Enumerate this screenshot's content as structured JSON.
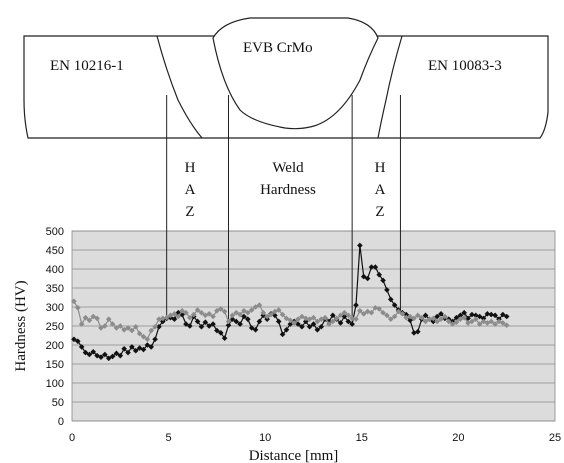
{
  "diagram": {
    "base_metal_left": "EN 10216-1",
    "weld_metal": "EVB CrMo",
    "base_metal_right": "EN 10083-3",
    "zone_left_haz": [
      "H",
      "A",
      "Z"
    ],
    "zone_weld": [
      "Weld",
      "Hardness"
    ],
    "zone_right_haz": [
      "H",
      "A",
      "Z"
    ]
  },
  "chart_data": {
    "type": "line",
    "xlabel": "Distance [mm]",
    "ylabel": "Hardness (HV)",
    "xlim": [
      0,
      25
    ],
    "ylim": [
      0,
      500
    ],
    "x_ticks": [
      "0",
      "5",
      "10",
      "15",
      "20",
      "25"
    ],
    "y_ticks": [
      "0",
      "50",
      "100",
      "150",
      "200",
      "250",
      "300",
      "350",
      "400",
      "450",
      "500"
    ],
    "grid": "horizontal",
    "plot_background": "#dcdcdc",
    "zone_boundaries_mm": [
      4.9,
      8.1,
      14.5,
      17.0
    ],
    "series": [
      {
        "color": "#111111",
        "marker": "diamond",
        "points": [
          [
            0.1,
            215
          ],
          [
            0.3,
            210
          ],
          [
            0.5,
            195
          ],
          [
            0.7,
            180
          ],
          [
            0.9,
            175
          ],
          [
            1.1,
            182
          ],
          [
            1.3,
            172
          ],
          [
            1.5,
            168
          ],
          [
            1.7,
            175
          ],
          [
            1.9,
            165
          ],
          [
            2.1,
            170
          ],
          [
            2.3,
            178
          ],
          [
            2.5,
            172
          ],
          [
            2.7,
            190
          ],
          [
            2.9,
            180
          ],
          [
            3.1,
            195
          ],
          [
            3.3,
            185
          ],
          [
            3.5,
            192
          ],
          [
            3.7,
            188
          ],
          [
            3.9,
            200
          ],
          [
            4.1,
            195
          ],
          [
            4.3,
            215
          ],
          [
            4.5,
            248
          ],
          [
            4.7,
            262
          ],
          [
            4.9,
            270
          ],
          [
            5.1,
            272
          ],
          [
            5.3,
            268
          ],
          [
            5.5,
            285
          ],
          [
            5.7,
            280
          ],
          [
            5.9,
            255
          ],
          [
            6.1,
            250
          ],
          [
            6.3,
            275
          ],
          [
            6.5,
            262
          ],
          [
            6.7,
            248
          ],
          [
            6.9,
            260
          ],
          [
            7.1,
            250
          ],
          [
            7.3,
            255
          ],
          [
            7.5,
            238
          ],
          [
            7.7,
            232
          ],
          [
            7.9,
            218
          ],
          [
            8.1,
            252
          ],
          [
            8.3,
            268
          ],
          [
            8.5,
            262
          ],
          [
            8.7,
            255
          ],
          [
            8.9,
            275
          ],
          [
            9.1,
            268
          ],
          [
            9.3,
            245
          ],
          [
            9.5,
            240
          ],
          [
            9.7,
            262
          ],
          [
            9.9,
            278
          ],
          [
            10.1,
            268
          ],
          [
            10.3,
            282
          ],
          [
            10.5,
            278
          ],
          [
            10.7,
            262
          ],
          [
            10.9,
            228
          ],
          [
            11.1,
            240
          ],
          [
            11.3,
            255
          ],
          [
            11.5,
            262
          ],
          [
            11.7,
            255
          ],
          [
            11.9,
            248
          ],
          [
            12.1,
            262
          ],
          [
            12.3,
            248
          ],
          [
            12.5,
            255
          ],
          [
            12.7,
            240
          ],
          [
            12.9,
            248
          ],
          [
            13.1,
            268
          ],
          [
            13.3,
            262
          ],
          [
            13.5,
            278
          ],
          [
            13.7,
            268
          ],
          [
            13.9,
            258
          ],
          [
            14.1,
            275
          ],
          [
            14.3,
            262
          ],
          [
            14.5,
            255
          ],
          [
            14.7,
            305
          ],
          [
            14.9,
            462
          ],
          [
            15.1,
            380
          ],
          [
            15.3,
            375
          ],
          [
            15.5,
            405
          ],
          [
            15.7,
            405
          ],
          [
            15.9,
            385
          ],
          [
            16.1,
            370
          ],
          [
            16.3,
            345
          ],
          [
            16.5,
            320
          ],
          [
            16.7,
            305
          ],
          [
            16.9,
            292
          ],
          [
            17.1,
            285
          ],
          [
            17.3,
            280
          ],
          [
            17.5,
            265
          ],
          [
            17.7,
            232
          ],
          [
            17.9,
            235
          ],
          [
            18.1,
            268
          ],
          [
            18.3,
            278
          ],
          [
            18.5,
            268
          ],
          [
            18.7,
            262
          ],
          [
            18.9,
            275
          ],
          [
            19.1,
            282
          ],
          [
            19.3,
            270
          ],
          [
            19.5,
            268
          ],
          [
            19.7,
            262
          ],
          [
            19.9,
            272
          ],
          [
            20.1,
            278
          ],
          [
            20.3,
            285
          ],
          [
            20.5,
            270
          ],
          [
            20.7,
            280
          ],
          [
            20.9,
            278
          ],
          [
            21.1,
            275
          ],
          [
            21.3,
            270
          ],
          [
            21.5,
            282
          ],
          [
            21.7,
            280
          ],
          [
            21.9,
            278
          ],
          [
            22.1,
            268
          ],
          [
            22.3,
            280
          ],
          [
            22.5,
            275
          ]
        ]
      },
      {
        "color": "#8c8c8c",
        "marker": "diamond",
        "points": [
          [
            0.1,
            315
          ],
          [
            0.3,
            298
          ],
          [
            0.5,
            255
          ],
          [
            0.7,
            272
          ],
          [
            0.9,
            265
          ],
          [
            1.1,
            275
          ],
          [
            1.3,
            270
          ],
          [
            1.5,
            245
          ],
          [
            1.7,
            250
          ],
          [
            1.9,
            268
          ],
          [
            2.1,
            255
          ],
          [
            2.3,
            245
          ],
          [
            2.5,
            250
          ],
          [
            2.7,
            240
          ],
          [
            2.9,
            245
          ],
          [
            3.1,
            238
          ],
          [
            3.3,
            248
          ],
          [
            3.5,
            230
          ],
          [
            3.7,
            222
          ],
          [
            3.9,
            215
          ],
          [
            4.1,
            238
          ],
          [
            4.3,
            248
          ],
          [
            4.5,
            268
          ],
          [
            4.7,
            270
          ],
          [
            4.9,
            272
          ],
          [
            5.1,
            278
          ],
          [
            5.3,
            282
          ],
          [
            5.5,
            275
          ],
          [
            5.7,
            290
          ],
          [
            5.9,
            285
          ],
          [
            6.1,
            272
          ],
          [
            6.3,
            280
          ],
          [
            6.5,
            292
          ],
          [
            6.7,
            285
          ],
          [
            6.9,
            278
          ],
          [
            7.1,
            282
          ],
          [
            7.3,
            275
          ],
          [
            7.5,
            290
          ],
          [
            7.7,
            295
          ],
          [
            7.9,
            288
          ],
          [
            8.1,
            262
          ],
          [
            8.3,
            278
          ],
          [
            8.5,
            285
          ],
          [
            8.7,
            280
          ],
          [
            8.9,
            290
          ],
          [
            9.1,
            285
          ],
          [
            9.3,
            292
          ],
          [
            9.5,
            300
          ],
          [
            9.7,
            305
          ],
          [
            9.9,
            285
          ],
          [
            10.1,
            275
          ],
          [
            10.3,
            280
          ],
          [
            10.5,
            288
          ],
          [
            10.7,
            292
          ],
          [
            10.9,
            280
          ],
          [
            11.1,
            270
          ],
          [
            11.3,
            265
          ],
          [
            11.5,
            258
          ],
          [
            11.7,
            268
          ],
          [
            11.9,
            275
          ],
          [
            12.1,
            270
          ],
          [
            12.3,
            268
          ],
          [
            12.5,
            272
          ],
          [
            12.7,
            262
          ],
          [
            12.9,
            268
          ],
          [
            13.1,
            272
          ],
          [
            13.3,
            255
          ],
          [
            13.5,
            262
          ],
          [
            13.7,
            270
          ],
          [
            13.9,
            278
          ],
          [
            14.1,
            285
          ],
          [
            14.3,
            278
          ],
          [
            14.5,
            270
          ],
          [
            14.7,
            268
          ],
          [
            14.9,
            290
          ],
          [
            15.1,
            282
          ],
          [
            15.3,
            288
          ],
          [
            15.5,
            285
          ],
          [
            15.7,
            298
          ],
          [
            15.9,
            295
          ],
          [
            16.1,
            285
          ],
          [
            16.3,
            278
          ],
          [
            16.5,
            268
          ],
          [
            16.7,
            275
          ],
          [
            16.9,
            288
          ],
          [
            17.1,
            282
          ],
          [
            17.3,
            272
          ],
          [
            17.5,
            275
          ],
          [
            17.7,
            270
          ],
          [
            17.9,
            278
          ],
          [
            18.1,
            272
          ],
          [
            18.3,
            262
          ],
          [
            18.5,
            268
          ],
          [
            18.7,
            270
          ],
          [
            18.9,
            262
          ],
          [
            19.1,
            268
          ],
          [
            19.3,
            275
          ],
          [
            19.5,
            262
          ],
          [
            19.7,
            255
          ],
          [
            19.9,
            260
          ],
          [
            20.1,
            268
          ],
          [
            20.3,
            272
          ],
          [
            20.5,
            258
          ],
          [
            20.7,
            262
          ],
          [
            20.9,
            268
          ],
          [
            21.1,
            255
          ],
          [
            21.3,
            262
          ],
          [
            21.5,
            258
          ],
          [
            21.7,
            262
          ],
          [
            21.9,
            255
          ],
          [
            22.1,
            262
          ],
          [
            22.3,
            258
          ],
          [
            22.5,
            252
          ]
        ]
      }
    ]
  }
}
